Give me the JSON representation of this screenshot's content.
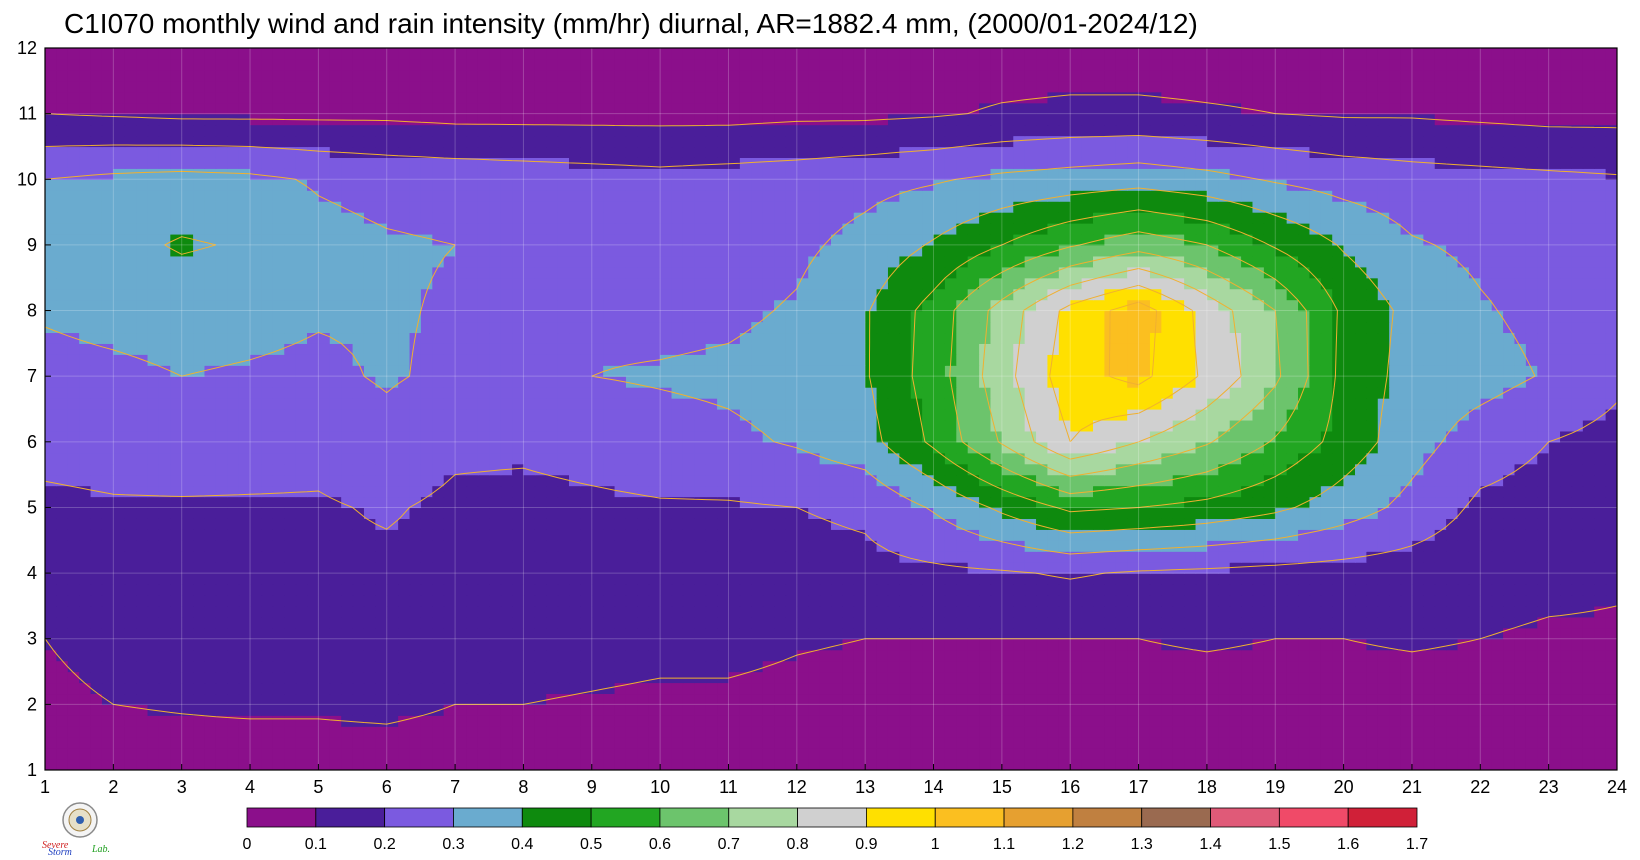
{
  "title": "C1I070 monthly wind and rain intensity (mm/hr) diurnal, AR=1882.4 mm, (2000/01-2024/12)",
  "logo": {
    "line1": "Severe",
    "line2": "Storm",
    "lab": "Lab."
  },
  "chart_data": {
    "type": "heatmap",
    "subtype": "filled-contour",
    "title": "C1I070 monthly wind and rain intensity (mm/hr) diurnal, AR=1882.4 mm, (2000/01-2024/12)",
    "xlabel": "",
    "ylabel": "",
    "xlim": [
      1,
      24
    ],
    "ylim": [
      1,
      12
    ],
    "x_ticks": [
      "1",
      "2",
      "3",
      "4",
      "5",
      "6",
      "7",
      "8",
      "9",
      "10",
      "11",
      "12",
      "13",
      "14",
      "15",
      "16",
      "17",
      "18",
      "19",
      "20",
      "21",
      "22",
      "23",
      "24"
    ],
    "y_ticks": [
      "1",
      "2",
      "3",
      "4",
      "5",
      "6",
      "7",
      "8",
      "9",
      "10",
      "11",
      "12"
    ],
    "grid": true,
    "colorbar": {
      "placement": "bottom",
      "ticks": [
        "0",
        "0.1",
        "0.2",
        "0.3",
        "0.4",
        "0.5",
        "0.6",
        "0.7",
        "0.8",
        "0.9",
        "1",
        "1.1",
        "1.2",
        "1.3",
        "1.4",
        "1.5",
        "1.6",
        "1.7"
      ],
      "colors": [
        "#8b0f8b",
        "#4a1e9a",
        "#7b5ae0",
        "#6aabcf",
        "#0e8a0e",
        "#22a622",
        "#6cc46c",
        "#a8d8a0",
        "#d0d0d0",
        "#ffe000",
        "#fbbf20",
        "#e6a030",
        "#c08040",
        "#9a6a50",
        "#e05a78",
        "#f04a68",
        "#d02038"
      ]
    },
    "contour_levels": [
      0.1,
      0.2,
      0.3,
      0.4,
      0.5,
      0.6,
      0.7,
      0.8,
      0.9,
      1.0,
      1.1
    ],
    "x": [
      1,
      2,
      3,
      4,
      5,
      6,
      7,
      8,
      9,
      10,
      11,
      12,
      13,
      14,
      15,
      16,
      17,
      18,
      19,
      20,
      21,
      22,
      23,
      24
    ],
    "y": [
      1,
      2,
      3,
      4,
      5,
      6,
      7,
      8,
      9,
      10,
      11,
      12
    ],
    "z": [
      [
        0.04,
        0.04,
        0.04,
        0.03,
        0.03,
        0.03,
        0.03,
        0.03,
        0.03,
        0.03,
        0.03,
        0.03,
        0.03,
        0.03,
        0.03,
        0.03,
        0.03,
        0.03,
        0.03,
        0.03,
        0.03,
        0.03,
        0.03,
        0.04
      ],
      [
        0.08,
        0.1,
        0.11,
        0.12,
        0.12,
        0.13,
        0.1,
        0.1,
        0.09,
        0.08,
        0.08,
        0.07,
        0.06,
        0.06,
        0.06,
        0.06,
        0.06,
        0.06,
        0.06,
        0.06,
        0.06,
        0.06,
        0.07,
        0.08
      ],
      [
        0.1,
        0.13,
        0.14,
        0.16,
        0.17,
        0.18,
        0.15,
        0.15,
        0.14,
        0.13,
        0.13,
        0.11,
        0.1,
        0.1,
        0.1,
        0.1,
        0.1,
        0.11,
        0.1,
        0.1,
        0.11,
        0.1,
        0.09,
        0.09
      ],
      [
        0.14,
        0.17,
        0.18,
        0.18,
        0.18,
        0.18,
        0.17,
        0.16,
        0.16,
        0.16,
        0.16,
        0.16,
        0.17,
        0.18,
        0.19,
        0.21,
        0.19,
        0.18,
        0.17,
        0.16,
        0.15,
        0.13,
        0.12,
        0.11
      ],
      [
        0.18,
        0.19,
        0.19,
        0.19,
        0.19,
        0.21,
        0.18,
        0.17,
        0.18,
        0.19,
        0.19,
        0.2,
        0.22,
        0.31,
        0.42,
        0.52,
        0.5,
        0.47,
        0.42,
        0.35,
        0.27,
        0.18,
        0.16,
        0.14
      ],
      [
        0.23,
        0.24,
        0.25,
        0.24,
        0.23,
        0.27,
        0.22,
        0.22,
        0.24,
        0.26,
        0.28,
        0.31,
        0.36,
        0.52,
        0.71,
        0.9,
        0.8,
        0.71,
        0.59,
        0.46,
        0.34,
        0.25,
        0.2,
        0.17
      ],
      [
        0.27,
        0.28,
        0.3,
        0.29,
        0.28,
        0.31,
        0.28,
        0.28,
        0.3,
        0.31,
        0.32,
        0.34,
        0.39,
        0.55,
        0.76,
        0.96,
        1.03,
        0.88,
        0.72,
        0.47,
        0.36,
        0.34,
        0.29,
        0.22
      ],
      [
        0.31,
        0.33,
        0.34,
        0.33,
        0.31,
        0.31,
        0.29,
        0.29,
        0.28,
        0.27,
        0.28,
        0.31,
        0.39,
        0.54,
        0.74,
        0.93,
        1.05,
        0.86,
        0.7,
        0.48,
        0.37,
        0.31,
        0.27,
        0.24
      ],
      [
        0.34,
        0.37,
        0.41,
        0.39,
        0.33,
        0.31,
        0.3,
        0.29,
        0.26,
        0.25,
        0.25,
        0.28,
        0.33,
        0.41,
        0.5,
        0.59,
        0.66,
        0.6,
        0.49,
        0.39,
        0.31,
        0.28,
        0.26,
        0.23
      ],
      [
        0.3,
        0.32,
        0.33,
        0.32,
        0.29,
        0.27,
        0.26,
        0.25,
        0.24,
        0.23,
        0.24,
        0.25,
        0.27,
        0.29,
        0.32,
        0.34,
        0.36,
        0.33,
        0.29,
        0.26,
        0.24,
        0.23,
        0.22,
        0.21
      ],
      [
        0.1,
        0.09,
        0.08,
        0.08,
        0.08,
        0.08,
        0.07,
        0.07,
        0.07,
        0.07,
        0.07,
        0.08,
        0.08,
        0.09,
        0.11,
        0.12,
        0.12,
        0.11,
        0.1,
        0.09,
        0.09,
        0.08,
        0.07,
        0.07
      ],
      [
        0.05,
        0.05,
        0.05,
        0.05,
        0.05,
        0.05,
        0.05,
        0.05,
        0.05,
        0.05,
        0.05,
        0.05,
        0.05,
        0.05,
        0.05,
        0.05,
        0.05,
        0.05,
        0.05,
        0.05,
        0.05,
        0.05,
        0.05,
        0.05
      ]
    ]
  }
}
